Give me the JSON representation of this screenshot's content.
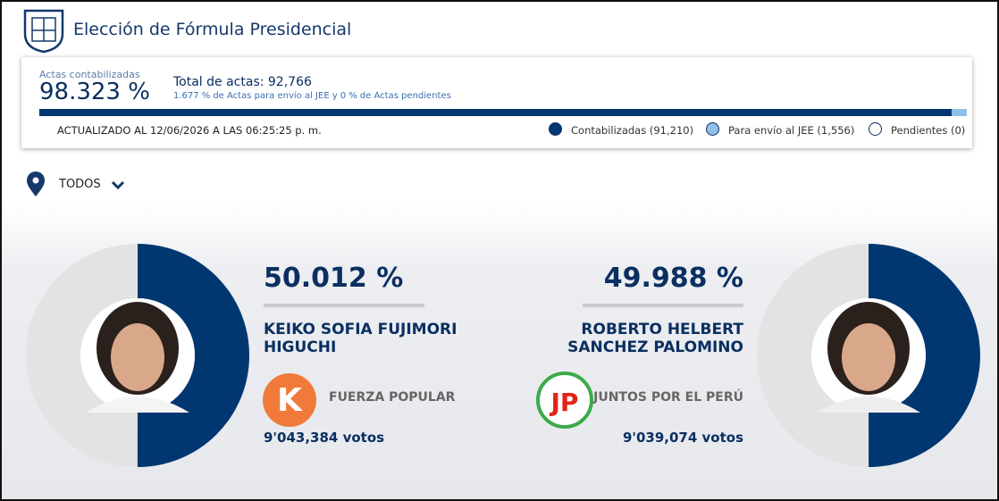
{
  "header": {
    "title": "Elección de Fórmula Presidencial"
  },
  "summary": {
    "actas_label": "Actas contabilizadas",
    "counted": {
      "value": 98.323,
      "label": "98.323 %",
      "color": "#003770"
    },
    "total": "Total de actas: 92,766",
    "jee": {
      "value": 1.677,
      "label": "1.677 %",
      "color": "#8ec0ea"
    },
    "jee_text": "de Actas para envío al JEE y",
    "pending": {
      "value": 0,
      "label": "0 %",
      "color": "#ffffff"
    },
    "pending_text": "de Actas pendientes",
    "updated": "ACTUALIZADO AL 12/06/2026 A LAS 06:25:25 p. m.",
    "legend": [
      "Contabilizadas (91,210)",
      "Para envío al JEE (1,556)",
      "Pendientes (0)"
    ]
  },
  "filter": {
    "label": "TODOS"
  },
  "candidates": [
    {
      "percent": {
        "value": 50.012,
        "label": "50.012 %"
      },
      "name": "KEIKO SOFIA FUJIMORI HIGUCHI",
      "party": "FUERZA POPULAR",
      "logo": "K",
      "votes": "9'043,384 votos",
      "color": "#003770"
    },
    {
      "percent": {
        "value": 49.988,
        "label": "49.988 %"
      },
      "name": "ROBERTO HELBERT SANCHEZ PALOMINO",
      "party": "JUNTOS POR EL PERÚ",
      "logo": "JP",
      "votes": "9'039,074 votos",
      "color": "#003770"
    }
  ]
}
